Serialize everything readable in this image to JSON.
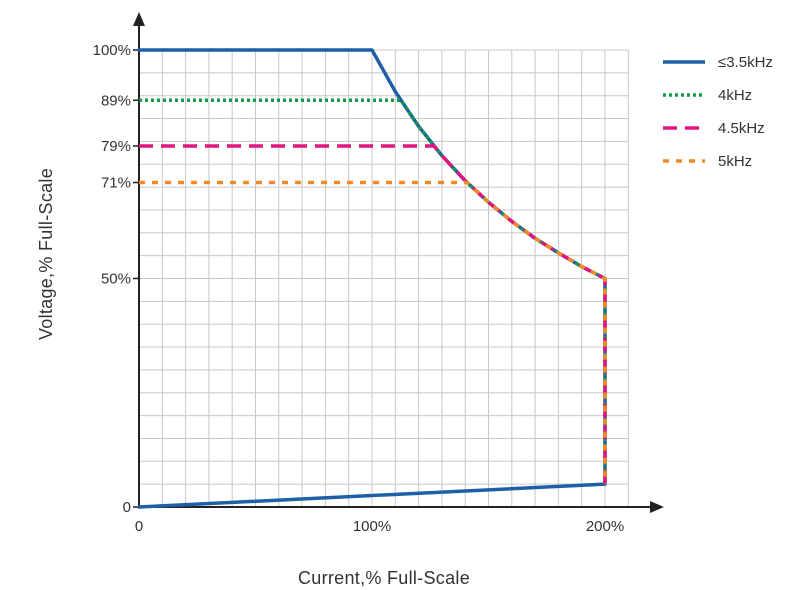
{
  "chart_data": {
    "type": "line",
    "title": "",
    "xlabel": "Current,% Full-Scale",
    "ylabel": "Voltage,% Full-Scale",
    "xlim": [
      0,
      210
    ],
    "ylim": [
      0,
      100
    ],
    "x_ticks": [
      {
        "value": 0,
        "label": "0"
      },
      {
        "value": 100,
        "label": "100%"
      },
      {
        "value": 200,
        "label": "200%"
      }
    ],
    "y_ticks": [
      {
        "value": 0,
        "label": "0"
      },
      {
        "value": 50,
        "label": "50%"
      },
      {
        "value": 71,
        "label": "71%"
      },
      {
        "value": 79,
        "label": "79%"
      },
      {
        "value": 89,
        "label": "89%"
      },
      {
        "value": 100,
        "label": "100%"
      }
    ],
    "grid": true,
    "legend_position": "top-right",
    "series": [
      {
        "name": "≤3.5kHz",
        "color": "#1f5fa8",
        "dash": "solid",
        "points": [
          [
            0,
            0
          ],
          [
            200,
            5
          ],
          [
            200,
            50
          ],
          [
            190,
            52.6
          ],
          [
            180,
            55.6
          ],
          [
            170,
            58.8
          ],
          [
            160,
            62.5
          ],
          [
            150,
            66.7
          ],
          [
            140,
            71.4
          ],
          [
            130,
            76.9
          ],
          [
            120,
            83.3
          ],
          [
            110,
            90.9
          ],
          [
            100,
            100
          ],
          [
            0,
            100
          ]
        ]
      },
      {
        "name": "4kHz",
        "color": "#139a4a",
        "dash": "dotted",
        "points": [
          [
            0,
            89
          ],
          [
            112.4,
            89
          ],
          [
            120,
            83.3
          ],
          [
            130,
            76.9
          ],
          [
            140,
            71.4
          ],
          [
            150,
            66.7
          ],
          [
            160,
            62.5
          ],
          [
            170,
            58.8
          ],
          [
            180,
            55.6
          ],
          [
            190,
            52.6
          ],
          [
            200,
            50
          ],
          [
            200,
            5
          ]
        ]
      },
      {
        "name": "4.5kHz",
        "color": "#e0157f",
        "dash": "dashed",
        "points": [
          [
            0,
            79
          ],
          [
            126.6,
            79
          ],
          [
            130,
            76.9
          ],
          [
            140,
            71.4
          ],
          [
            150,
            66.7
          ],
          [
            160,
            62.5
          ],
          [
            170,
            58.8
          ],
          [
            180,
            55.6
          ],
          [
            190,
            52.6
          ],
          [
            200,
            50
          ],
          [
            200,
            5
          ]
        ]
      },
      {
        "name": "5kHz",
        "color": "#f08a24",
        "dash": "short-dashed",
        "points": [
          [
            0,
            71
          ],
          [
            140.8,
            71
          ],
          [
            150,
            66.7
          ],
          [
            160,
            62.5
          ],
          [
            170,
            58.8
          ],
          [
            180,
            55.6
          ],
          [
            190,
            52.6
          ],
          [
            200,
            50
          ],
          [
            200,
            5
          ]
        ]
      }
    ]
  }
}
